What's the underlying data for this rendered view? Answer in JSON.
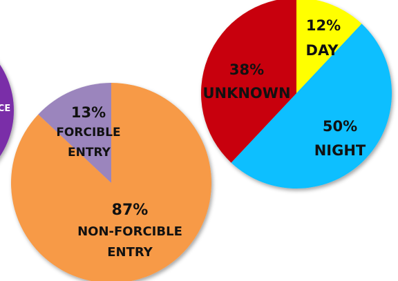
{
  "chart_data": [
    {
      "type": "pie",
      "title": "",
      "slices": [
        {
          "label": "...CE",
          "value": null,
          "color": "#7a2fa8"
        }
      ],
      "partial": true
    },
    {
      "type": "pie",
      "title": "",
      "slices": [
        {
          "percent": "13%",
          "label": [
            "FORCIBLE",
            "ENTRY"
          ],
          "value": 13,
          "color": "#9b85bd"
        },
        {
          "percent": "87%",
          "label": [
            "NON-FORCIBLE",
            "ENTRY"
          ],
          "value": 87,
          "color": "#f79a46"
        }
      ]
    },
    {
      "type": "pie",
      "title": "",
      "slices": [
        {
          "percent": "12%",
          "label": [
            "DAY"
          ],
          "value": 12,
          "color": "#ffff00"
        },
        {
          "percent": "50%",
          "label": [
            "NIGHT"
          ],
          "value": 50,
          "color": "#0fbfff"
        },
        {
          "percent": "38%",
          "label": [
            "UNKNOWN"
          ],
          "value": 38,
          "color": "#c8000a"
        }
      ]
    }
  ]
}
